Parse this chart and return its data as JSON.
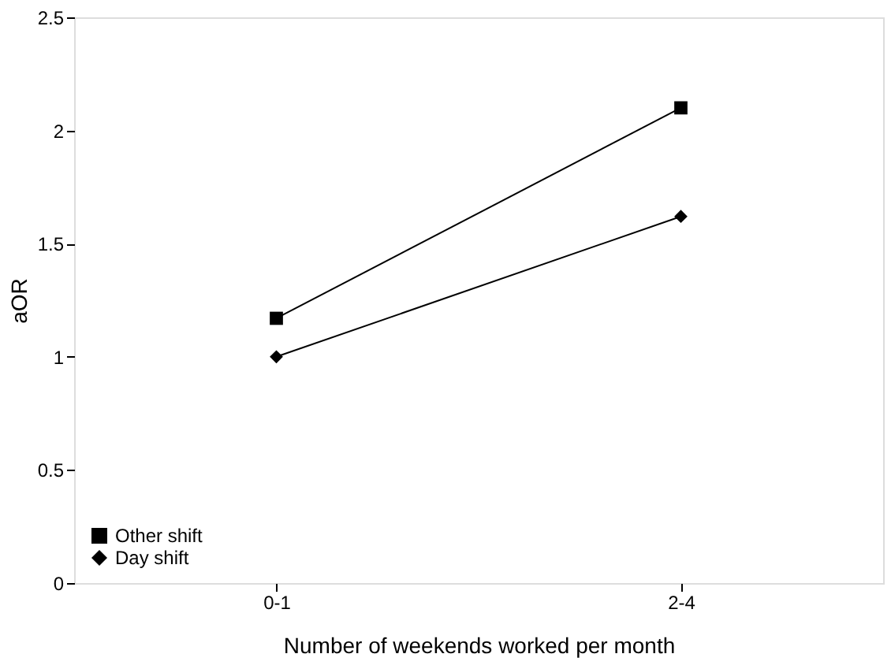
{
  "chart_data": {
    "type": "line",
    "xlabel": "Number of  weekends worked per month",
    "ylabel": "aOR",
    "categories": [
      "0-1",
      "2-4"
    ],
    "series": [
      {
        "name": "Other shift",
        "color": "#000000",
        "marker": "square",
        "values": [
          1.17,
          2.1
        ]
      },
      {
        "name": "Day shift",
        "color": "#000000",
        "marker": "diamond",
        "values": [
          1.0,
          1.62
        ]
      }
    ],
    "ylim": [
      0,
      2.5
    ],
    "yticks": [
      0,
      0.5,
      1,
      1.5,
      2,
      2.5
    ],
    "grid": false,
    "legend": "bottom left",
    "line_style": "solid"
  }
}
